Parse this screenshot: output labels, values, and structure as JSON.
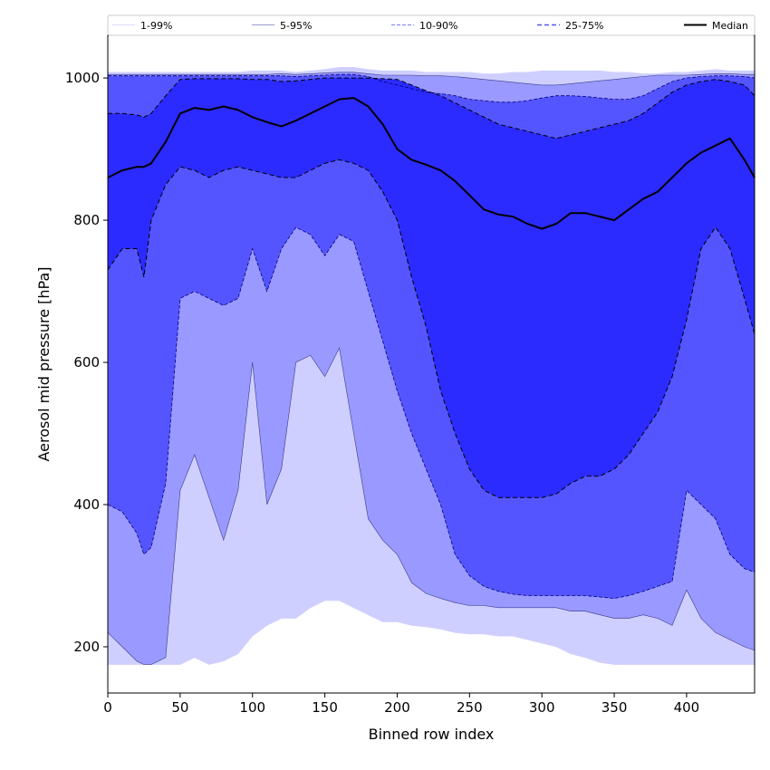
{
  "chart_data": {
    "type": "area",
    "xlabel": "Binned row index",
    "ylabel": "Aerosol mid pressure [hPa]",
    "xlim": [
      0,
      447
    ],
    "ylim": [
      135,
      1060
    ],
    "x_ticks": [
      0,
      50,
      100,
      150,
      200,
      250,
      300,
      350,
      400
    ],
    "y_ticks": [
      200,
      400,
      600,
      800,
      1000
    ],
    "legend_position": "top",
    "grid": false,
    "colors": {
      "band_1_99": "#cfcfff",
      "band_5_95": "#9999ff",
      "band_10_90": "#5555ff",
      "band_25_75": "#2b2bff",
      "median_line": "#000000",
      "background": "#ffffff"
    },
    "x": [
      0,
      10,
      20,
      25,
      30,
      40,
      50,
      60,
      70,
      80,
      90,
      100,
      110,
      120,
      130,
      140,
      150,
      160,
      170,
      180,
      190,
      200,
      210,
      220,
      230,
      240,
      250,
      260,
      270,
      280,
      290,
      300,
      310,
      320,
      330,
      340,
      350,
      360,
      370,
      380,
      390,
      400,
      410,
      420,
      430,
      440,
      447
    ],
    "series": [
      {
        "name": "1-99%",
        "upper": [
          1008,
          1008,
          1008,
          1008,
          1008,
          1008,
          1008,
          1008,
          1008,
          1008,
          1008,
          1010,
          1010,
          1010,
          1008,
          1010,
          1012,
          1015,
          1015,
          1012,
          1010,
          1010,
          1010,
          1008,
          1008,
          1008,
          1008,
          1006,
          1006,
          1008,
          1008,
          1010,
          1010,
          1010,
          1010,
          1010,
          1008,
          1008,
          1006,
          1006,
          1008,
          1008,
          1010,
          1012,
          1010,
          1010,
          1010
        ],
        "lower": [
          175,
          175,
          175,
          175,
          175,
          175,
          175,
          185,
          175,
          180,
          190,
          215,
          230,
          240,
          240,
          255,
          265,
          265,
          255,
          245,
          235,
          235,
          230,
          228,
          225,
          220,
          218,
          218,
          215,
          215,
          210,
          205,
          200,
          190,
          185,
          178,
          175,
          175,
          175,
          175,
          175,
          175,
          175,
          175,
          175,
          175,
          175
        ]
      },
      {
        "name": "5-95%",
        "upper": [
          1005,
          1005,
          1005,
          1005,
          1005,
          1005,
          1005,
          1005,
          1005,
          1005,
          1005,
          1005,
          1005,
          1006,
          1005,
          1006,
          1007,
          1008,
          1008,
          1006,
          1004,
          1004,
          1004,
          1003,
          1003,
          1002,
          1000,
          998,
          996,
          994,
          992,
          990,
          990,
          992,
          994,
          996,
          998,
          1000,
          1002,
          1004,
          1004,
          1004,
          1005,
          1006,
          1006,
          1005,
          1005
        ],
        "lower": [
          220,
          200,
          180,
          175,
          175,
          185,
          420,
          470,
          410,
          350,
          420,
          600,
          400,
          450,
          600,
          610,
          580,
          620,
          500,
          380,
          350,
          330,
          290,
          275,
          268,
          262,
          258,
          258,
          255,
          255,
          255,
          255,
          255,
          250,
          250,
          245,
          240,
          240,
          245,
          240,
          230,
          280,
          240,
          220,
          210,
          200,
          195
        ]
      },
      {
        "name": "10-90%",
        "upper": [
          1003,
          1003,
          1003,
          1003,
          1003,
          1003,
          1003,
          1003,
          1003,
          1003,
          1003,
          1003,
          1003,
          1003,
          1002,
          1003,
          1004,
          1005,
          1005,
          1002,
          995,
          990,
          985,
          980,
          978,
          975,
          970,
          968,
          966,
          966,
          968,
          972,
          975,
          975,
          974,
          972,
          970,
          970,
          975,
          985,
          995,
          1000,
          1002,
          1003,
          1003,
          1002,
          1000
        ],
        "lower": [
          400,
          390,
          360,
          330,
          340,
          430,
          690,
          700,
          690,
          680,
          690,
          760,
          700,
          760,
          790,
          780,
          750,
          780,
          770,
          700,
          630,
          560,
          500,
          450,
          400,
          330,
          300,
          285,
          278,
          274,
          272,
          272,
          272,
          272,
          272,
          270,
          268,
          272,
          278,
          285,
          292,
          420,
          400,
          380,
          330,
          310,
          305
        ]
      },
      {
        "name": "25-75%",
        "upper": [
          950,
          950,
          948,
          945,
          950,
          975,
          998,
          999,
          999,
          999,
          999,
          998,
          998,
          995,
          996,
          998,
          1000,
          1000,
          1000,
          1000,
          999,
          998,
          990,
          982,
          975,
          965,
          955,
          945,
          935,
          930,
          925,
          920,
          915,
          920,
          925,
          930,
          935,
          940,
          950,
          965,
          980,
          990,
          995,
          998,
          995,
          990,
          975
        ],
        "lower": [
          730,
          760,
          760,
          720,
          800,
          850,
          875,
          870,
          860,
          870,
          875,
          870,
          865,
          860,
          860,
          870,
          880,
          885,
          880,
          870,
          840,
          800,
          720,
          650,
          560,
          500,
          450,
          420,
          410,
          410,
          410,
          410,
          415,
          430,
          440,
          440,
          450,
          470,
          500,
          530,
          580,
          660,
          760,
          790,
          760,
          690,
          640
        ]
      },
      {
        "name": "Median",
        "values": [
          860,
          870,
          875,
          875,
          880,
          910,
          950,
          958,
          955,
          960,
          955,
          945,
          938,
          932,
          940,
          950,
          960,
          970,
          972,
          960,
          935,
          900,
          885,
          878,
          870,
          855,
          835,
          815,
          808,
          805,
          795,
          788,
          795,
          810,
          810,
          805,
          800,
          815,
          830,
          840,
          860,
          880,
          895,
          905,
          915,
          885,
          860
        ]
      }
    ]
  }
}
